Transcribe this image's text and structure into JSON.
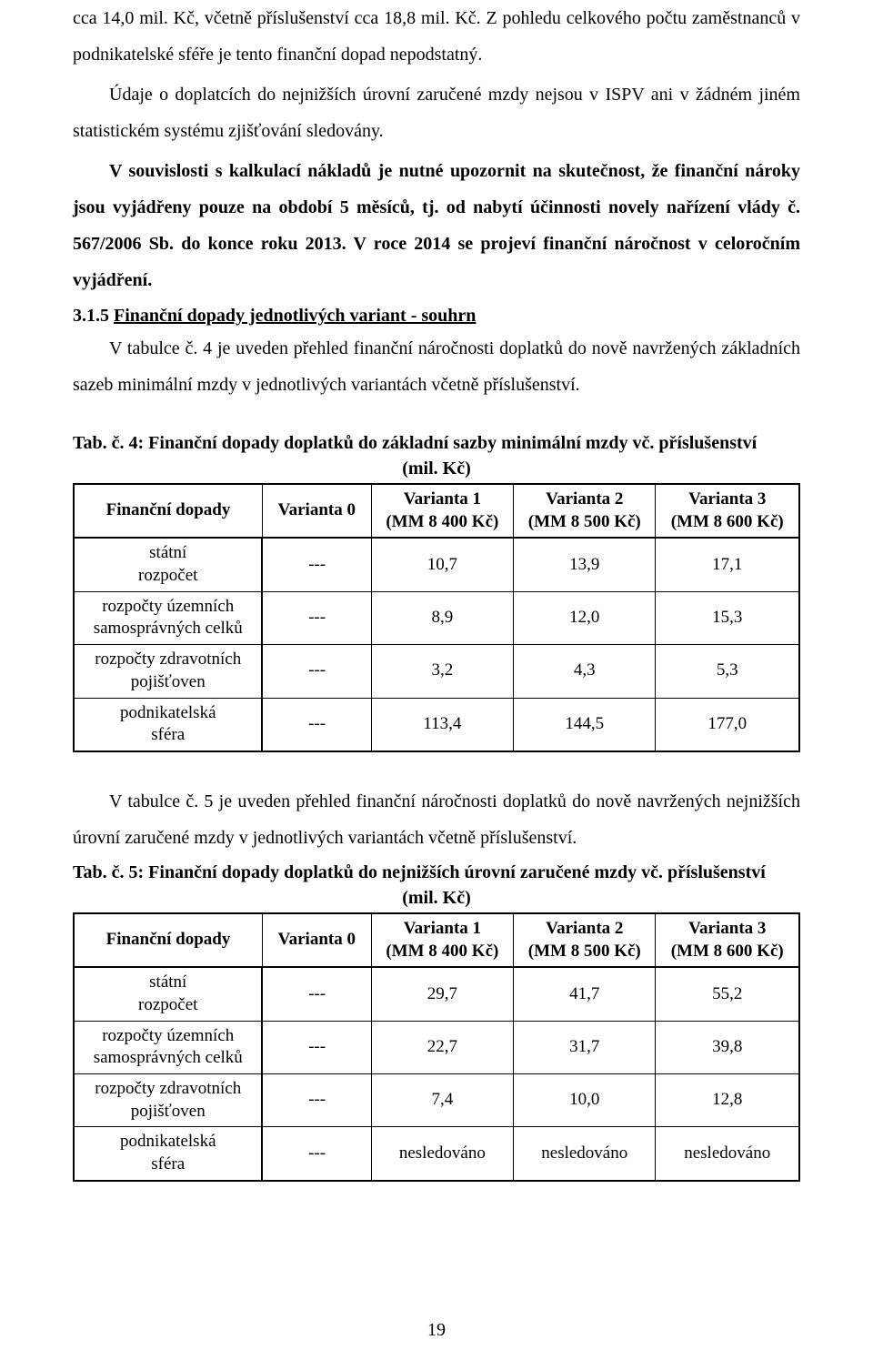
{
  "paragraphs": {
    "p1": "cca 14,0 mil. Kč, včetně příslušenství cca 18,8 mil. Kč. Z pohledu celkového počtu zaměstnanců v podnikatelské sféře je tento finanční dopad nepodstatný.",
    "p2": "Údaje o doplatcích do nejnižších úrovní zaručené mzdy nejsou v ISPV ani v žádném jiném statistickém systému zjišťování sledovány.",
    "p3": "V souvislosti s kalkulací nákladů je nutné upozornit na skutečnost, že finanční nároky jsou vyjádřeny pouze na období 5 měsíců, tj. od nabytí účinnosti novely nařízení vlády č. 567/2006 Sb. do konce roku 2013. V roce 2014 se projeví finanční náročnost v celoročním vyjádření.",
    "section_number": "3.1.5 ",
    "section_title": "Finanční dopady jednotlivých variant - souhrn",
    "p4": "V tabulce č. 4 je uveden přehled finanční náročnosti doplatků do nově navržených základních sazeb minimální mzdy v jednotlivých variantách včetně příslušenství.",
    "p5": "V tabulce č. 5 je uveden přehled finanční náročnosti doplatků do nově navržených nejnižších úrovní zaručené mzdy v jednotlivých variantách včetně příslušenství."
  },
  "table4": {
    "caption_line1": "Tab. č. 4: Finanční dopady doplatků do základní sazby minimální mzdy vč. příslušenství",
    "caption_line2": "(mil. Kč)",
    "headers": {
      "col0": "Finanční dopady",
      "col1_a": "Varianta 0",
      "col1_b": "",
      "col2_a": "Varianta 1",
      "col2_b": "(MM 8 400 Kč)",
      "col3_a": "Varianta 2",
      "col3_b": "(MM 8 500 Kč)",
      "col4_a": "Varianta 3",
      "col4_b": "(MM 8 600 Kč)"
    },
    "rows": [
      {
        "label": "státní\nrozpočet",
        "v0": "---",
        "v1": "10,7",
        "v2": "13,9",
        "v3": "17,1"
      },
      {
        "label": "rozpočty územních\nsamosprávných celků",
        "v0": "---",
        "v1": "8,9",
        "v2": "12,0",
        "v3": "15,3"
      },
      {
        "label": "rozpočty zdravotních\npojišťoven",
        "v0": "---",
        "v1": "3,2",
        "v2": "4,3",
        "v3": "5,3"
      },
      {
        "label": "podnikatelská\nsféra",
        "v0": "---",
        "v1": "113,4",
        "v2": "144,5",
        "v3": "177,0"
      }
    ]
  },
  "table5": {
    "caption_line1": "Tab. č. 5: Finanční dopady doplatků do nejnižších úrovní zaručené mzdy vč. příslušenství",
    "caption_line2": "(mil. Kč)",
    "headers": {
      "col0": "Finanční dopady",
      "col1_a": "Varianta 0",
      "col1_b": "",
      "col2_a": "Varianta 1",
      "col2_b": "(MM 8 400 Kč)",
      "col3_a": "Varianta 2",
      "col3_b": "(MM 8 500 Kč)",
      "col4_a": "Varianta 3",
      "col4_b": "(MM 8 600 Kč)"
    },
    "rows": [
      {
        "label": "státní\nrozpočet",
        "v0": "---",
        "v1": "29,7",
        "v2": "41,7",
        "v3": "55,2"
      },
      {
        "label": "rozpočty územních\nsamosprávných celků",
        "v0": "---",
        "v1": "22,7",
        "v2": "31,7",
        "v3": "39,8"
      },
      {
        "label": "rozpočty zdravotních\npojišťoven",
        "v0": "---",
        "v1": "7,4",
        "v2": "10,0",
        "v3": "12,8"
      },
      {
        "label": "podnikatelská\nsféra",
        "v0": "---",
        "v1": "nesledováno",
        "v2": "nesledováno",
        "v3": "nesledováno"
      }
    ]
  },
  "page_number": "19",
  "style": {
    "font_family": "Times New Roman",
    "body_fontsize_pt": 15,
    "text_color": "#000000",
    "background_color": "#ffffff",
    "table_border_color": "#000000",
    "col_widths_pct": [
      26,
      15,
      19.6,
      19.6,
      19.8
    ]
  }
}
